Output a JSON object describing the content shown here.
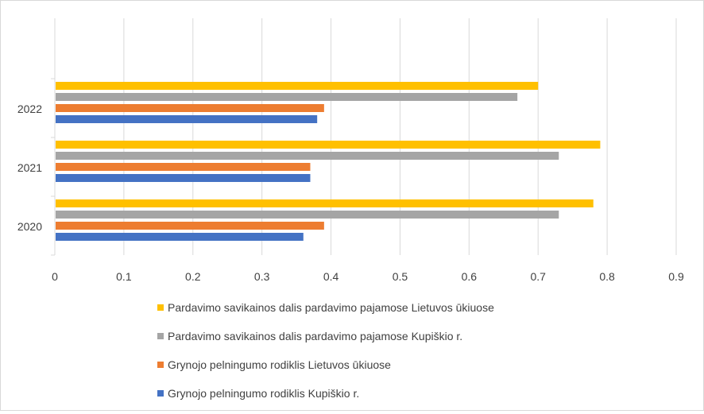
{
  "chart_data": {
    "type": "bar",
    "orientation": "horizontal",
    "categories": [
      "2020",
      "2021",
      "2022"
    ],
    "series": [
      {
        "name": "Grynojo pelningumo rodiklis Kupiškio r.",
        "color": "#4472c4",
        "values": [
          0.36,
          0.37,
          0.38
        ]
      },
      {
        "name": "Grynojo pelningumo rodiklis Lietuvos ūkiuose",
        "color": "#ed7d31",
        "values": [
          0.39,
          0.37,
          0.39
        ]
      },
      {
        "name": "Pardavimo savikainos dalis pardavimo pajamose Kupiškio r.",
        "color": "#a5a5a5",
        "values": [
          0.73,
          0.73,
          0.67
        ]
      },
      {
        "name": "Pardavimo savikainos dalis pardavimo pajamose Lietuvos ūkiuose",
        "color": "#ffc000",
        "values": [
          0.78,
          0.79,
          0.7
        ]
      }
    ],
    "xlim": [
      0,
      0.9
    ],
    "x_ticks": [
      "0",
      "0.1",
      "0.2",
      "0.3",
      "0.4",
      "0.5",
      "0.6",
      "0.7",
      "0.8",
      "0.9"
    ],
    "grid": true,
    "legend_position": "bottom",
    "legend_order": [
      3,
      2,
      1,
      0
    ]
  }
}
